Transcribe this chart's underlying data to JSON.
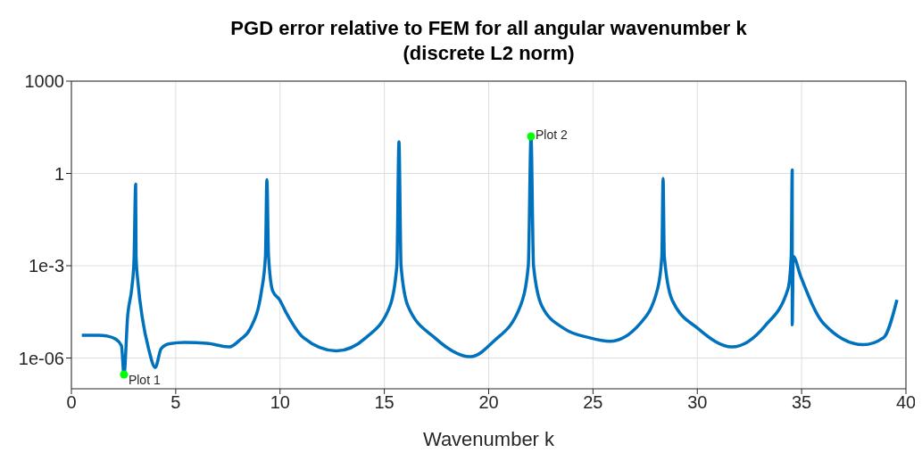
{
  "chart_data": {
    "type": "line",
    "title": "PGD error relative to FEM for all angular wavenumber k\n(discrete L2 norm)",
    "xlabel": "Wavenumber k",
    "xlim": [
      0,
      40
    ],
    "xticks": [
      0,
      5,
      10,
      15,
      20,
      25,
      30,
      35,
      40
    ],
    "ylim": [
      1e-07,
      1000
    ],
    "yticks": [
      1000,
      1,
      {
        "value": 0.001,
        "label": "1e-3"
      },
      {
        "value": 1e-06,
        "label": "1e-06"
      }
    ],
    "log": "y",
    "grid": true,
    "line_style": "solid",
    "series": [
      {
        "color": "#0072bd",
        "x": [
          0.5,
          1.3,
          1.7,
          2.1,
          2.4,
          2.52,
          2.7,
          2.9,
          3.0,
          3.08,
          3.1,
          3.2,
          3.4,
          3.7,
          4.02,
          4.3,
          4.7,
          5.43,
          6.5,
          7.57,
          8.1,
          8.56,
          9.11,
          9.3,
          9.37,
          9.45,
          9.65,
          9.97,
          10.27,
          11.12,
          12.7,
          14.12,
          15.27,
          15.6,
          15.7,
          15.8,
          16.13,
          17.41,
          19.12,
          20.24,
          21.52,
          21.9,
          22.03,
          22.15,
          22.55,
          23.66,
          24.81,
          25.8,
          27.25,
          28.1,
          28.3,
          28.36,
          28.42,
          28.79,
          30.07,
          31.66,
          33.24,
          34.35,
          34.5,
          34.55,
          34.55,
          34.6,
          34.95,
          36.06,
          37.95,
          38.93,
          39.57
        ],
        "values": [
          5.5e-06,
          5.5e-06,
          5.2e-06,
          4.2e-06,
          2.5e-06,
          2.9e-07,
          2.5e-05,
          0.0002,
          0.0015,
          0.45,
          0.002,
          0.00025,
          2e-05,
          2e-06,
          4.9e-07,
          2e-06,
          2.9e-06,
          3.2e-06,
          3e-06,
          2.3e-06,
          4e-06,
          8.7e-06,
          0.00015,
          0.002,
          0.63,
          0.002,
          0.00015,
          8e-05,
          3.2e-05,
          4.6e-06,
          1.7e-06,
          4.6e-06,
          4.9e-05,
          0.001,
          10.7,
          0.001,
          4.9e-05,
          4.6e-06,
          1.1e-06,
          3.5e-06,
          4.9e-05,
          0.001,
          16,
          0.001,
          4.9e-05,
          8.7e-06,
          4.6e-06,
          3.5e-06,
          1.3e-05,
          0.00018,
          0.002,
          0.68,
          0.002,
          7.8e-05,
          8.7e-06,
          2.3e-06,
          1.1e-05,
          0.00018,
          0.002,
          1.3,
          1.2e-05,
          0.002,
          0.00046,
          1.3e-05,
          2.7e-06,
          4.6e-06,
          7.8e-05
        ]
      },
      {
        "type": "scatter",
        "color": "#00ff00",
        "x": [
          2.52,
          22.03
        ],
        "values": [
          2.9e-07,
          16
        ]
      }
    ],
    "annotations": [
      {
        "text": "Plot 1",
        "x": 2.52,
        "y": 2.9e-07
      },
      {
        "text": "Plot 2",
        "x": 22.03,
        "y": 16
      }
    ]
  }
}
